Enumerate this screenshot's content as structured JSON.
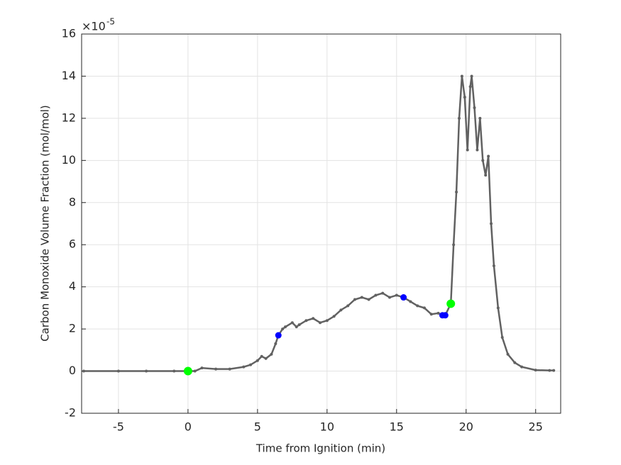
{
  "chart_data": {
    "type": "line",
    "xlabel": "Time from Ignition (min)",
    "ylabel": "Carbon Monoxide Volume Fraction (mol/mol)",
    "y_exponent_label": {
      "base": "×10",
      "power": "-5"
    },
    "xlim": [
      -7.65,
      26.8
    ],
    "ylim": [
      -2,
      16
    ],
    "xticks": [
      -5,
      0,
      5,
      10,
      15,
      20,
      25
    ],
    "yticks": [
      -2,
      0,
      2,
      4,
      6,
      8,
      10,
      12,
      14,
      16
    ],
    "grid": true,
    "series": [
      {
        "color": "#616161",
        "x": [
          -7.5,
          -5,
          -3,
          -1,
          0,
          0.5,
          1,
          2,
          3,
          4,
          4.5,
          5,
          5.3,
          5.6,
          6,
          6.3,
          6.5,
          6.8,
          7,
          7.5,
          7.8,
          8,
          8.5,
          9,
          9.5,
          10,
          10.5,
          11,
          11.5,
          12,
          12.5,
          13,
          13.5,
          14,
          14.5,
          15,
          15.5,
          16,
          16.5,
          17,
          17.5,
          18,
          18.3,
          18.5,
          18.9,
          19.1,
          19.3,
          19.5,
          19.7,
          19.9,
          20.1,
          20.3,
          20.4,
          20.6,
          20.8,
          21,
          21.2,
          21.4,
          21.6,
          21.8,
          22,
          22.3,
          22.6,
          23,
          23.5,
          24,
          25,
          26,
          26.3
        ],
        "values": [
          0,
          0,
          0,
          0,
          0,
          0,
          0.15,
          0.1,
          0.1,
          0.2,
          0.3,
          0.5,
          0.7,
          0.6,
          0.8,
          1.3,
          1.7,
          2.0,
          2.1,
          2.3,
          2.1,
          2.2,
          2.4,
          2.5,
          2.3,
          2.4,
          2.6,
          2.9,
          3.1,
          3.4,
          3.5,
          3.4,
          3.6,
          3.7,
          3.5,
          3.6,
          3.5,
          3.3,
          3.1,
          3.0,
          2.7,
          2.75,
          2.65,
          2.65,
          3.2,
          6.0,
          8.5,
          12,
          14.0,
          13.0,
          10.5,
          13.5,
          14.0,
          12.5,
          10.5,
          12.0,
          10.0,
          9.3,
          10.2,
          7.0,
          5.0,
          3.0,
          1.6,
          0.8,
          0.4,
          0.2,
          0.05,
          0.03,
          0.03
        ]
      },
      {
        "color": "#00ff00",
        "marker": "big",
        "x": [
          0,
          18.9
        ],
        "values": [
          0,
          3.2
        ]
      },
      {
        "color": "#0000ff",
        "marker": "mid",
        "x": [
          6.5,
          15.5,
          18.3,
          18.5
        ],
        "values": [
          1.7,
          3.5,
          2.65,
          2.65
        ]
      }
    ]
  }
}
